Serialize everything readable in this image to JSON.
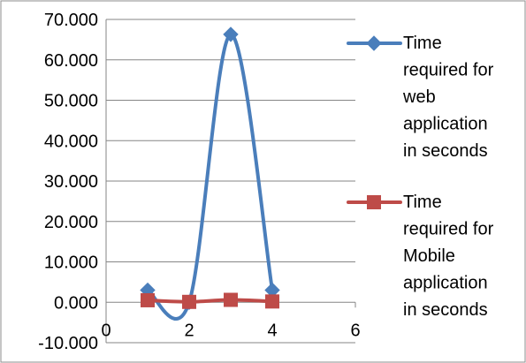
{
  "chart_data": {
    "type": "line",
    "smooth": true,
    "x": [
      1,
      2,
      3,
      4
    ],
    "series": [
      {
        "name": "Time required for web application in seconds",
        "legend_lines": [
          "Time",
          "required for",
          "web",
          "application",
          "in seconds"
        ],
        "values": [
          3.0,
          0.0,
          66.3,
          3.0
        ],
        "color": "#4a7ebb",
        "marker": "diamond"
      },
      {
        "name": "Time required for Mobile application in seconds",
        "legend_lines": [
          "Time",
          "required for",
          "Mobile",
          "application",
          "in seconds"
        ],
        "values": [
          0.5,
          0.1,
          0.6,
          0.2
        ],
        "color": "#be4b48",
        "marker": "square"
      }
    ],
    "xlim": [
      0,
      6
    ],
    "x_ticks": [
      0,
      2,
      4,
      6
    ],
    "ylim": [
      -10,
      70
    ],
    "y_ticks": [
      -10,
      0,
      10,
      20,
      30,
      40,
      50,
      60,
      70
    ],
    "y_tick_labels": [
      "-10.000",
      "0.000",
      "10.000",
      "20.000",
      "30.000",
      "40.000",
      "50.000",
      "60.000",
      "70.000"
    ],
    "x_tick_labels": [
      "0",
      "2",
      "4",
      "6"
    ],
    "grid": "horizontal",
    "legend_position": "right",
    "title": "",
    "xlabel": "",
    "ylabel": ""
  }
}
